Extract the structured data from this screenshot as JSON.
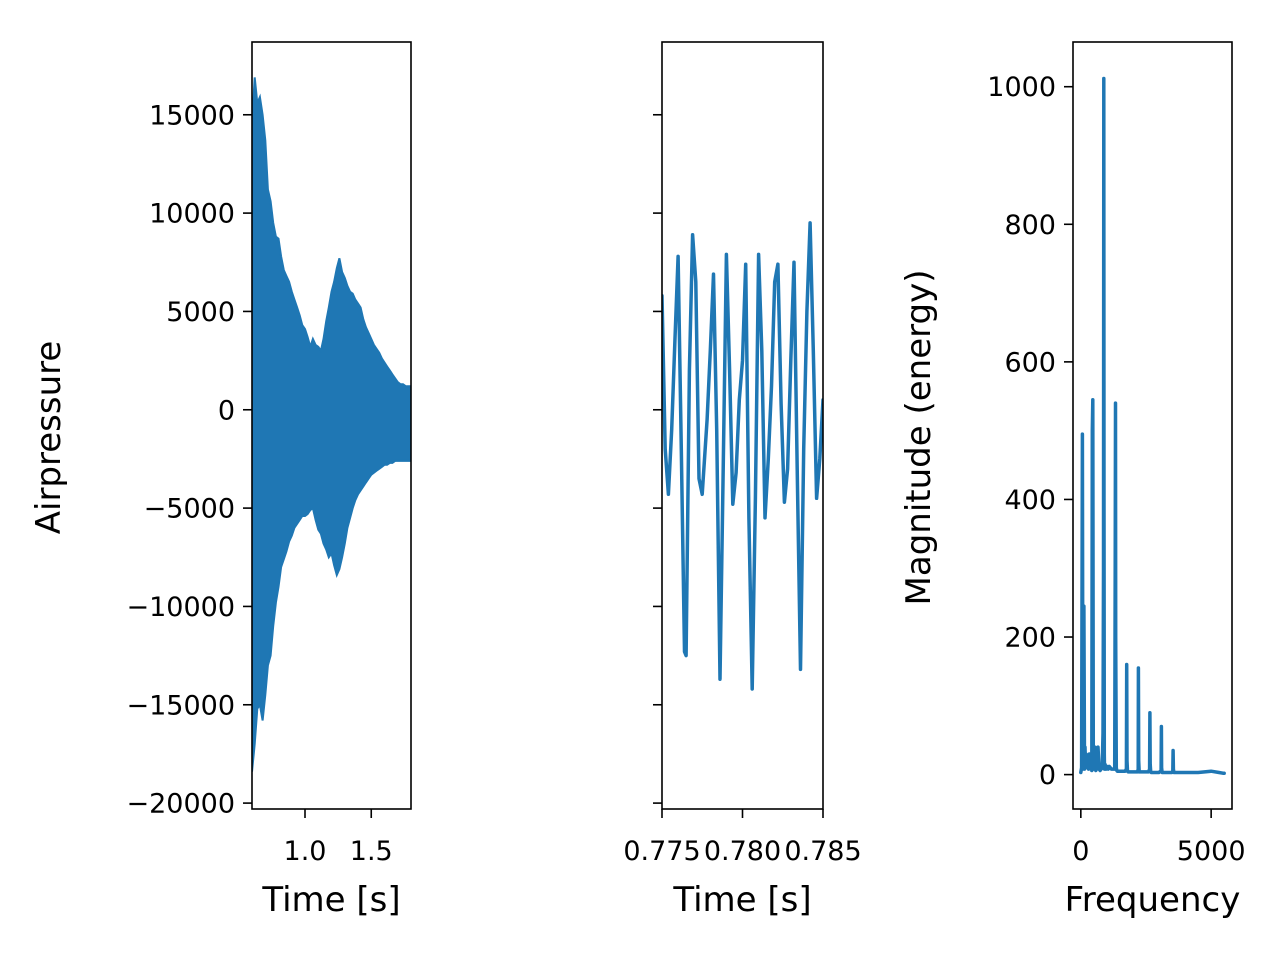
{
  "chart_data": [
    {
      "type": "line",
      "title": "",
      "xlabel": "Time [s]",
      "ylabel": "Airpressure",
      "xlim": [
        0.6,
        1.8
      ],
      "ylim": [
        -20300,
        18700
      ],
      "xticks": [
        1.0,
        1.5
      ],
      "xtick_labels": [
        "1.0",
        "1.5"
      ],
      "yticks": [
        -20000,
        -15000,
        -10000,
        -5000,
        0,
        5000,
        10000,
        15000
      ],
      "ytick_labels": [
        "−20000",
        "−15000",
        "−10000",
        "−5000",
        "0",
        "5000",
        "10000",
        "15000"
      ],
      "series": [
        {
          "color": "#1f77b4",
          "x": [
            0.6,
            0.62,
            0.64,
            0.66,
            0.68,
            0.7,
            0.72,
            0.74,
            0.76,
            0.78,
            0.8,
            0.82,
            0.84,
            0.86,
            0.88,
            0.9,
            0.92,
            0.94,
            0.96,
            0.98,
            1.0,
            1.02,
            1.04,
            1.06,
            1.08,
            1.1,
            1.12,
            1.14,
            1.16,
            1.18,
            1.2,
            1.22,
            1.24,
            1.26,
            1.28,
            1.3,
            1.32,
            1.34,
            1.36,
            1.38,
            1.4,
            1.42,
            1.44,
            1.46,
            1.48,
            1.5,
            1.52,
            1.54,
            1.56,
            1.58,
            1.6,
            1.62,
            1.64,
            1.66,
            1.68,
            1.7,
            1.72,
            1.74,
            1.76,
            1.78,
            1.8
          ],
          "upper": [
            14500,
            16900,
            15600,
            15900,
            15000,
            13700,
            11200,
            10600,
            9500,
            8800,
            8700,
            7800,
            7100,
            6800,
            6500,
            6000,
            5600,
            5200,
            4800,
            4300,
            4100,
            3700,
            3200,
            3600,
            3300,
            3200,
            3000,
            3600,
            4500,
            5200,
            6000,
            6500,
            7200,
            7700,
            7000,
            6700,
            6300,
            6000,
            5900,
            5600,
            5400,
            5200,
            4600,
            4200,
            3900,
            3600,
            3300,
            3100,
            2900,
            2600,
            2400,
            2200,
            2000,
            1800,
            1600,
            1400,
            1300,
            1300,
            1200,
            1200,
            1200
          ],
          "lower": [
            -18400,
            -17000,
            -15200,
            -15000,
            -15800,
            -14500,
            -13000,
            -12500,
            -11000,
            -9800,
            -9000,
            -8000,
            -7600,
            -7200,
            -6700,
            -6400,
            -6000,
            -5800,
            -5600,
            -5400,
            -5400,
            -5300,
            -5100,
            -5000,
            -5600,
            -6100,
            -6300,
            -6800,
            -7100,
            -7500,
            -7300,
            -7900,
            -8400,
            -8100,
            -7500,
            -6800,
            -6000,
            -5500,
            -5000,
            -4600,
            -4300,
            -4100,
            -3900,
            -3700,
            -3500,
            -3300,
            -3200,
            -3100,
            -3000,
            -2900,
            -2800,
            -2800,
            -2700,
            -2700,
            -2600,
            -2600,
            -2600,
            -2600,
            -2600,
            -2600,
            -2600
          ]
        }
      ]
    },
    {
      "type": "line",
      "title": "",
      "xlabel": "Time [s]",
      "ylabel": "",
      "xlim": [
        0.775,
        0.785
      ],
      "ylim": [
        -20300,
        18700
      ],
      "xticks": [
        0.775,
        0.78,
        0.785
      ],
      "xtick_labels": [
        "0.775",
        "0.780",
        "0.785"
      ],
      "yticks": [
        -20000,
        -15000,
        -10000,
        -5000,
        0,
        5000,
        10000,
        15000
      ],
      "ytick_labels": [],
      "series": [
        {
          "color": "#1f77b4",
          "x": [
            0.775,
            0.7752,
            0.7754,
            0.7756,
            0.7758,
            0.776,
            0.7762,
            0.7764,
            0.7765,
            0.7767,
            0.7769,
            0.7771,
            0.7773,
            0.7775,
            0.7778,
            0.778,
            0.7782,
            0.7784,
            0.7786,
            0.7788,
            0.779,
            0.7792,
            0.7794,
            0.7796,
            0.7798,
            0.78,
            0.7802,
            0.7804,
            0.7806,
            0.7808,
            0.781,
            0.7812,
            0.7814,
            0.7816,
            0.7818,
            0.782,
            0.7822,
            0.7824,
            0.7826,
            0.7828,
            0.783,
            0.7832,
            0.7834,
            0.7836,
            0.7838,
            0.784,
            0.7842,
            0.7844,
            0.7846,
            0.7848,
            0.785
          ],
          "y": [
            5800,
            -2000,
            -4300,
            -1000,
            3500,
            7800,
            -2000,
            -12300,
            -12500,
            2000,
            8900,
            6500,
            -3500,
            -4300,
            -500,
            3000,
            6900,
            -1000,
            -13700,
            -3000,
            7900,
            2000,
            -4800,
            -3200,
            500,
            2500,
            7400,
            -5500,
            -14200,
            -4500,
            7900,
            3000,
            -5500,
            -2500,
            1200,
            6500,
            7400,
            300,
            -4700,
            -3000,
            2500,
            7500,
            -3000,
            -13200,
            -2000,
            5000,
            9500,
            3000,
            -4500,
            -2500,
            500
          ]
        }
      ]
    },
    {
      "type": "line",
      "title": "",
      "xlabel": "Frequency",
      "ylabel": "Magnitude (energy)",
      "xlim": [
        -300,
        5800
      ],
      "ylim": [
        -50,
        1065
      ],
      "xticks": [
        0,
        5000
      ],
      "xtick_labels": [
        "0",
        "5000"
      ],
      "yticks": [
        0,
        200,
        400,
        600,
        800,
        1000
      ],
      "ytick_labels": [
        "0",
        "200",
        "400",
        "600",
        "800",
        "1000"
      ],
      "series": [
        {
          "color": "#1f77b4",
          "x": [
            0,
            30,
            60,
            80,
            100,
            120,
            140,
            160,
            180,
            200,
            230,
            260,
            300,
            330,
            360,
            390,
            420,
            440,
            460,
            480,
            500,
            540,
            580,
            620,
            660,
            700,
            740,
            780,
            820,
            850,
            870,
            880,
            890,
            900,
            910,
            930,
            970,
            1010,
            1050,
            1090,
            1130,
            1170,
            1200,
            1300,
            1320,
            1330,
            1340,
            1360,
            1380,
            1400,
            1500,
            1700,
            1750,
            1760,
            1770,
            1790,
            1810,
            1900,
            2180,
            2200,
            2210,
            2220,
            2240,
            2260,
            2400,
            2600,
            2640,
            2650,
            2660,
            2680,
            2700,
            3000,
            3080,
            3090,
            3100,
            3120,
            3140,
            3300,
            3500,
            3530,
            3540,
            3550,
            3570,
            3590,
            3900,
            4200,
            4500,
            5000,
            5300,
            5450,
            5500
          ],
          "y": [
            3,
            10,
            495,
            8,
            20,
            245,
            8,
            40,
            12,
            30,
            10,
            25,
            8,
            30,
            10,
            25,
            6,
            500,
            545,
            20,
            8,
            40,
            6,
            10,
            40,
            8,
            6,
            8,
            10,
            60,
            300,
            1012,
            400,
            30,
            8,
            15,
            8,
            12,
            8,
            12,
            10,
            8,
            8,
            8,
            300,
            540,
            200,
            10,
            6,
            5,
            5,
            5,
            8,
            160,
            20,
            5,
            4,
            4,
            4,
            8,
            155,
            20,
            4,
            4,
            4,
            4,
            8,
            90,
            15,
            4,
            3,
            3,
            6,
            70,
            10,
            3,
            3,
            3,
            3,
            5,
            35,
            8,
            3,
            3,
            3,
            3,
            3,
            5,
            3,
            2,
            2
          ]
        }
      ]
    }
  ]
}
